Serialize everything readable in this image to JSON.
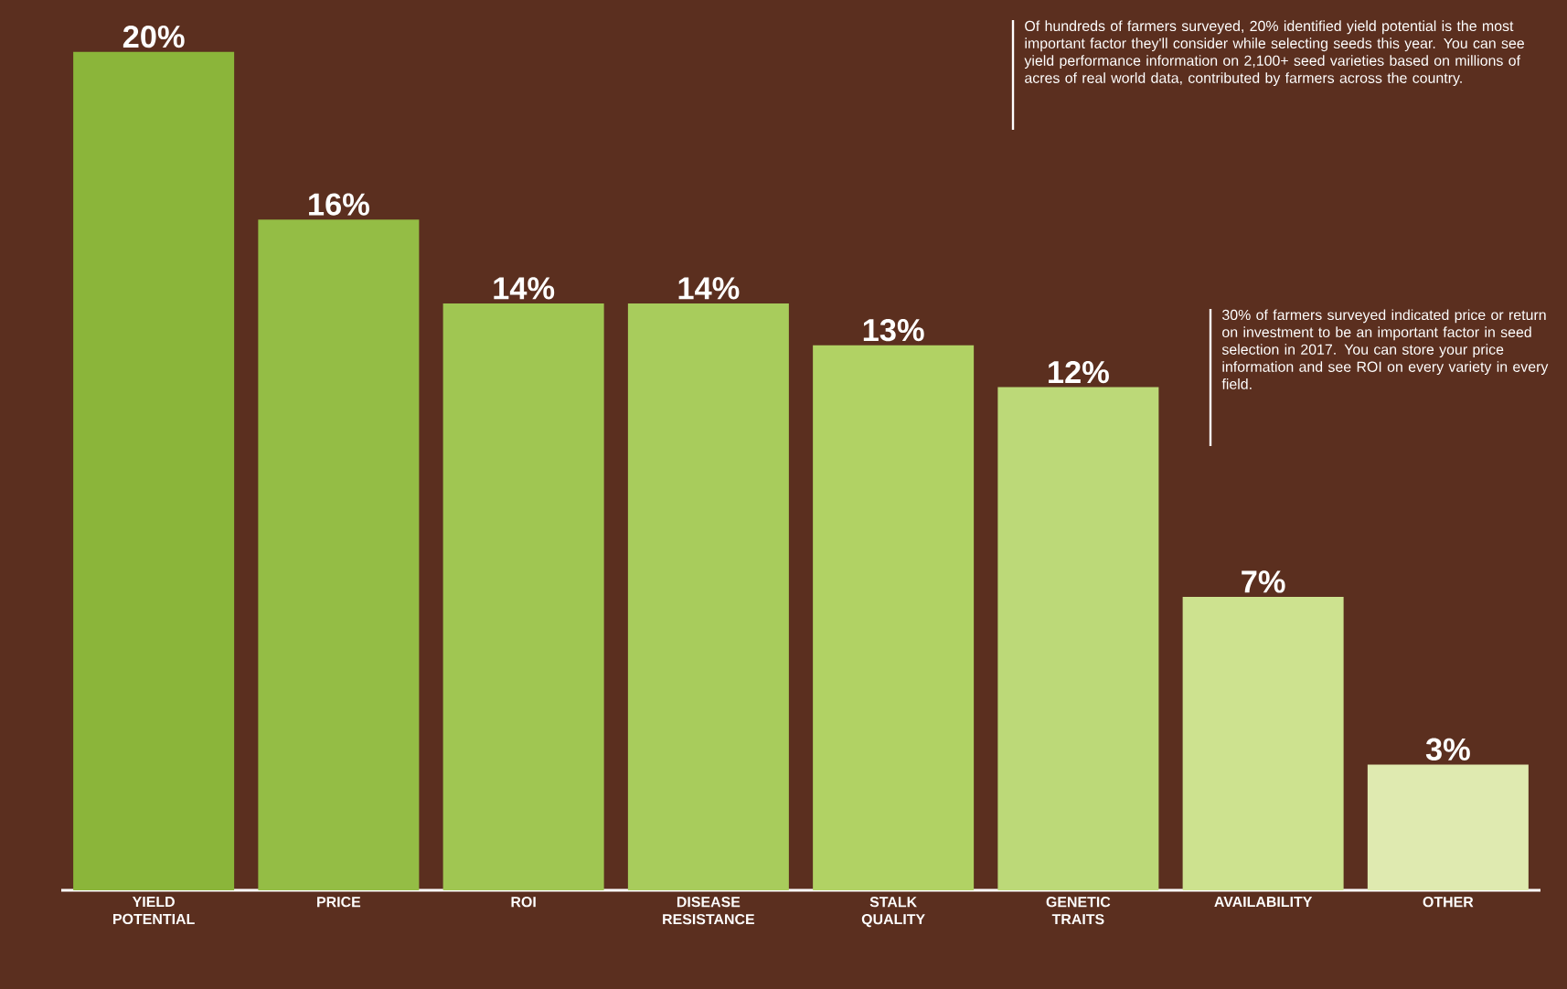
{
  "chart_data": {
    "type": "bar",
    "categories": [
      "YIELD POTENTIAL",
      "PRICE",
      "ROI",
      "DISEASE RESISTANCE",
      "STALK QUALITY",
      "GENETIC TRAITS",
      "AVAILABILITY",
      "OTHER"
    ],
    "values": [
      20,
      16,
      14,
      14,
      13,
      12,
      7,
      3
    ],
    "value_labels": [
      "20%",
      "16%",
      "14%",
      "14%",
      "13%",
      "12%",
      "7%",
      "3%"
    ],
    "colors": [
      "#8bb53a",
      "#94bd45",
      "#a0c652",
      "#a8cc5c",
      "#b1d264",
      "#bcd978",
      "#cde28f",
      "#dfeab0"
    ],
    "annotations": [
      "Of hundreds of farmers surveyed, 20% identified yield potential is the most important factor they'll consider while selecting seeds this year. You can see yield performance information on 2,100+ seed varieties based on millions of acres of real world data, contributed by farmers across the country.",
      "30% of farmers surveyed indicated price or return on investment to be an important factor in seed selection in 2017. You can store your price information and see ROI on every variety in every field."
    ]
  }
}
